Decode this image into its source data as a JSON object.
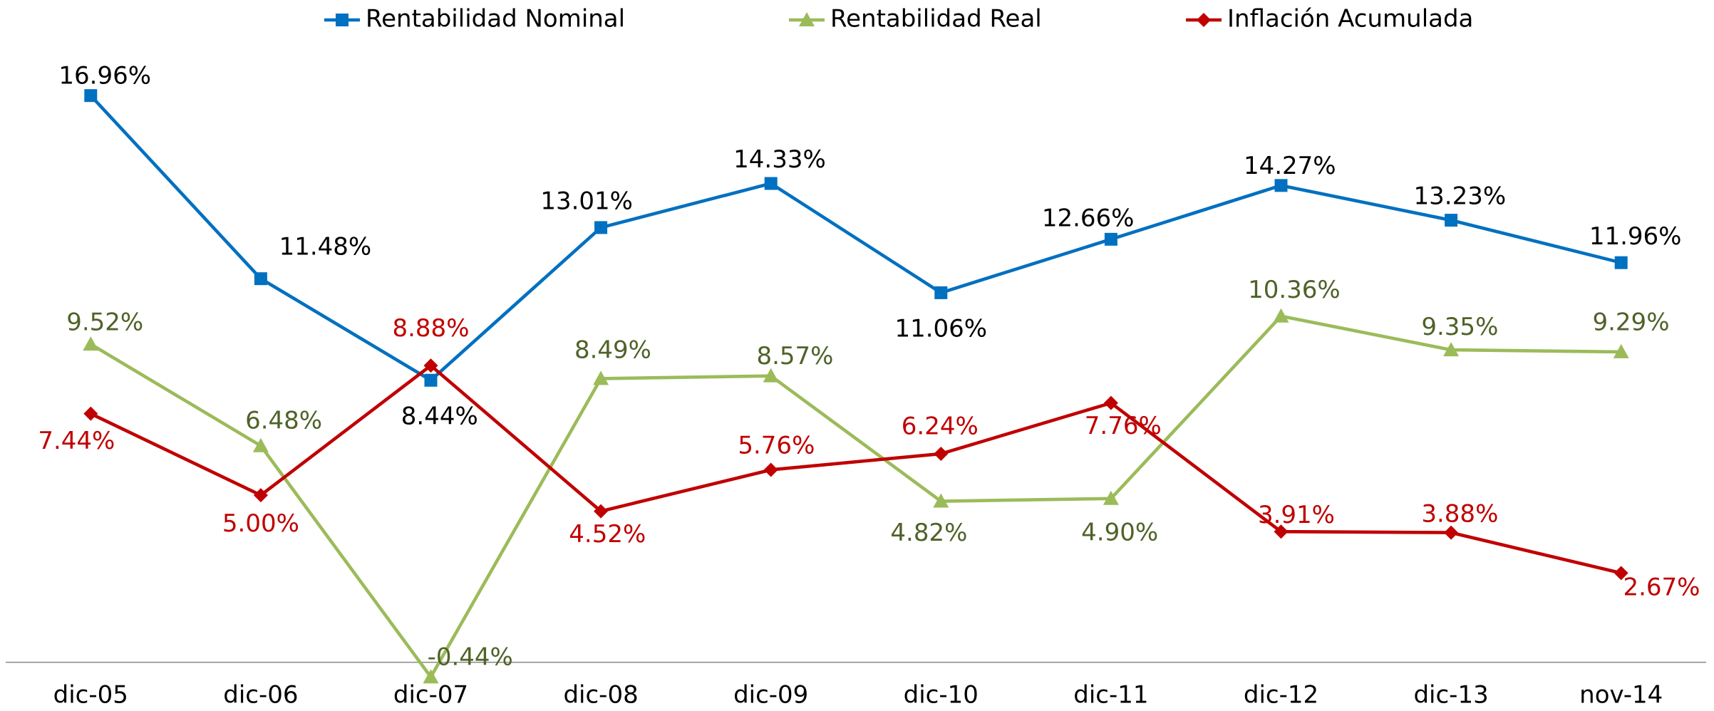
{
  "chart_data": {
    "type": "line",
    "categories": [
      "dic-05",
      "dic-06",
      "dic-07",
      "dic-08",
      "dic-09",
      "dic-10",
      "dic-11",
      "dic-12",
      "dic-13",
      "nov-14"
    ],
    "ylim": [
      -1,
      18
    ],
    "legend": "top",
    "series": [
      {
        "name": "Rentabilidad Nominal",
        "color": "#0070c0",
        "label_color": "#000000",
        "marker": "square",
        "values": [
          16.96,
          11.48,
          8.44,
          13.01,
          14.33,
          11.06,
          12.66,
          14.27,
          13.23,
          11.96
        ],
        "value_labels": [
          "16.96%",
          "11.48%",
          "8.44%",
          "13.01%",
          "14.33%",
          "11.06%",
          "12.66%",
          "14.27%",
          "13.23%",
          "11.96%"
        ]
      },
      {
        "name": "Rentabilidad Real",
        "color": "#9bbb59",
        "label_color": "#4f6228",
        "marker": "triangle",
        "values": [
          9.52,
          6.48,
          -0.44,
          8.49,
          8.57,
          4.82,
          4.9,
          10.36,
          9.35,
          9.29
        ],
        "value_labels": [
          "9.52%",
          "6.48%",
          "-0.44%",
          "8.49%",
          "8.57%",
          "4.82%",
          "4.90%",
          "10.36%",
          "9.35%",
          "9.29%"
        ]
      },
      {
        "name": "Inflación Acumulada",
        "color": "#c00000",
        "label_color": "#c00000",
        "marker": "diamond",
        "values": [
          7.44,
          5.0,
          8.88,
          4.52,
          5.76,
          6.24,
          7.76,
          3.91,
          3.88,
          2.67
        ],
        "value_labels": [
          "7.44%",
          "5.00%",
          "8.88%",
          "4.52%",
          "5.76%",
          "6.24%",
          "7.76%",
          "3.91%",
          "3.88%",
          "2.67%"
        ]
      }
    ]
  }
}
